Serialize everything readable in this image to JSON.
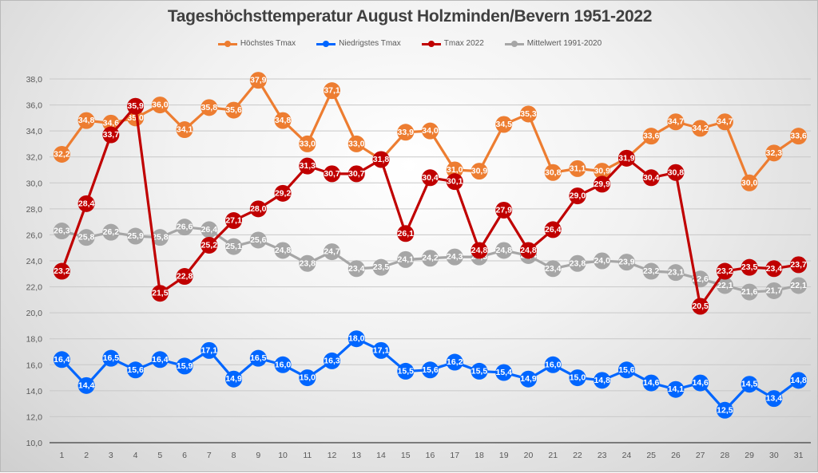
{
  "chart_data": {
    "type": "line",
    "title": "Tageshöchsttemperatur August Holzminden/Bevern 1951-2022",
    "xlabel": "",
    "ylabel": "",
    "ylim": [
      10,
      38
    ],
    "ytick_step": 2,
    "yticks": [
      "10,0",
      "12,0",
      "14,0",
      "16,0",
      "18,0",
      "20,0",
      "22,0",
      "24,0",
      "26,0",
      "28,0",
      "30,0",
      "32,0",
      "34,0",
      "36,0",
      "38,0"
    ],
    "grid": true,
    "legend_position": "top",
    "categories": [
      "1",
      "2",
      "3",
      "4",
      "5",
      "6",
      "7",
      "8",
      "9",
      "10",
      "11",
      "12",
      "13",
      "14",
      "15",
      "16",
      "17",
      "18",
      "19",
      "20",
      "21",
      "22",
      "23",
      "24",
      "25",
      "26",
      "27",
      "28",
      "29",
      "30",
      "31"
    ],
    "series": [
      {
        "name": "Höchstes Tmax",
        "color": "#ed7d31",
        "values": [
          32.2,
          34.8,
          34.6,
          35.0,
          36.0,
          34.1,
          35.8,
          35.6,
          37.9,
          34.8,
          33.0,
          37.1,
          33.0,
          31.8,
          33.9,
          34.0,
          31.0,
          30.9,
          34.5,
          35.3,
          30.8,
          31.1,
          30.9,
          31.9,
          33.6,
          34.7,
          34.2,
          34.7,
          30.0,
          32.3,
          33.6
        ]
      },
      {
        "name": "Niedrigstes Tmax",
        "color": "#0066ff",
        "values": [
          16.4,
          14.4,
          16.5,
          15.6,
          16.4,
          15.9,
          17.1,
          14.9,
          16.5,
          16.0,
          15.0,
          16.3,
          18.0,
          17.1,
          15.5,
          15.6,
          16.2,
          15.5,
          15.4,
          14.9,
          16.0,
          15.0,
          14.8,
          15.6,
          14.6,
          14.1,
          14.6,
          12.5,
          14.5,
          13.4,
          14.8
        ]
      },
      {
        "name": "Tmax 2022",
        "color": "#c00000",
        "values": [
          23.2,
          28.4,
          33.7,
          35.9,
          21.5,
          22.8,
          25.2,
          27.1,
          28.0,
          29.2,
          31.3,
          30.7,
          30.7,
          31.8,
          26.1,
          30.4,
          30.1,
          24.8,
          27.9,
          24.8,
          26.4,
          29.0,
          29.9,
          31.9,
          30.4,
          30.8,
          20.5,
          23.2,
          23.5,
          23.4,
          23.7
        ]
      },
      {
        "name": "Mittelwert 1991-2020",
        "color": "#a6a6a6",
        "values": [
          26.3,
          25.8,
          26.2,
          25.9,
          25.8,
          26.6,
          26.4,
          25.1,
          25.6,
          24.8,
          23.8,
          24.7,
          23.4,
          23.5,
          24.1,
          24.2,
          24.3,
          24.3,
          24.8,
          24.4,
          23.4,
          23.8,
          24.0,
          23.9,
          23.2,
          23.1,
          22.6,
          22.1,
          21.6,
          21.7,
          22.1
        ]
      }
    ]
  }
}
